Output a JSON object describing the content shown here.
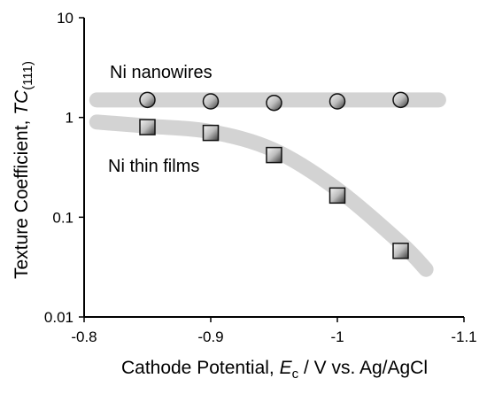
{
  "chart_data": {
    "type": "scatter",
    "x_axis": {
      "title_prefix": "Cathode Potential, ",
      "title_symbol": "E",
      "title_subscript": "c",
      "title_suffix": " / V vs. Ag/AgCl",
      "ticks": [
        -0.8,
        -0.9,
        -1,
        -1.1
      ],
      "tick_labels": [
        "-0.8",
        "-0.9",
        "-1",
        "-1.1"
      ],
      "xlim": [
        -0.8,
        -1.1
      ],
      "reversed": true
    },
    "y_axis": {
      "title_prefix": "Texture Coefficient, ",
      "title_symbol": "TC",
      "title_subscript": "(111)",
      "scale": "log",
      "ticks": [
        0.01,
        0.1,
        1,
        10
      ],
      "tick_labels": [
        "0.01",
        "0.1",
        "1",
        "10"
      ],
      "ylim": [
        0.01,
        10
      ]
    },
    "grid": false,
    "legend": "none",
    "series": [
      {
        "name": "Ni nanowires",
        "marker": "circle",
        "x": [
          -0.85,
          -0.9,
          -0.95,
          -1.0,
          -1.05
        ],
        "y": [
          1.5,
          1.45,
          1.4,
          1.45,
          1.5
        ],
        "trend_x": [
          -0.81,
          -1.08
        ],
        "trend_y": [
          1.5,
          1.5
        ]
      },
      {
        "name": "Ni thin films",
        "marker": "square",
        "x": [
          -0.85,
          -0.9,
          -0.95,
          -1.0,
          -1.05
        ],
        "y": [
          0.8,
          0.7,
          0.42,
          0.165,
          0.046
        ],
        "trend_x": [
          -0.81,
          -0.85,
          -0.9,
          -0.95,
          -1.0,
          -1.05,
          -1.07
        ],
        "trend_y": [
          0.9,
          0.82,
          0.72,
          0.47,
          0.19,
          0.055,
          0.03
        ]
      }
    ],
    "colors": {
      "trend": "#d3d3d3",
      "marker_edge": "#111111",
      "marker_light": "#f4f4f4",
      "marker_dark": "#3c3c3c"
    }
  }
}
